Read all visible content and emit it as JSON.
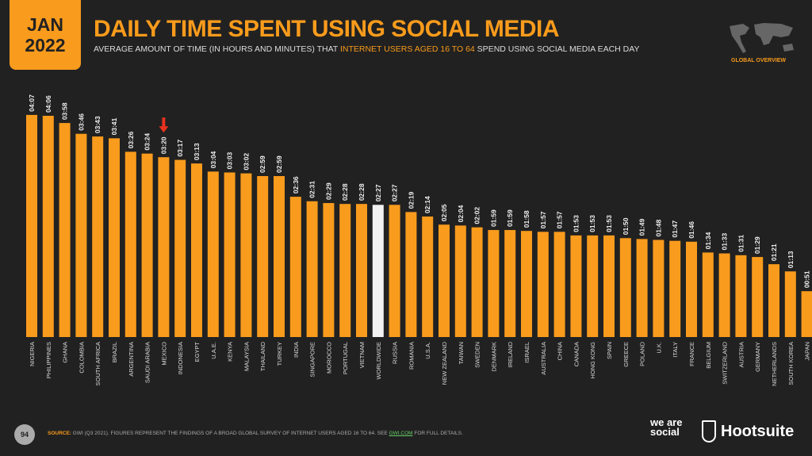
{
  "header": {
    "month": "JAN",
    "year": "2022",
    "title": "DAILY TIME SPENT USING SOCIAL MEDIA",
    "subtitle_pre": "AVERAGE AMOUNT OF TIME (IN HOURS AND MINUTES) THAT ",
    "subtitle_highlight": "INTERNET USERS AGED 16 TO 64",
    "subtitle_post": " SPEND USING SOCIAL MEDIA EACH DAY",
    "badge": "GLOBAL OVERVIEW"
  },
  "footer": {
    "page": "94",
    "source_label": "SOURCE:",
    "source_text": "GWI (Q3 2021). FIGURES REPRESENT THE FINDINGS OF A BROAD GLOBAL SURVEY OF INTERNET USERS AGED 16 TO 64. SEE ",
    "source_link": "GWI.COM",
    "source_tail": " FOR FULL DETAILS.",
    "logo1": "we are social",
    "logo2": "Hootsuite"
  },
  "colors": {
    "bar": "#f99b1c",
    "highlight_bar": "#f2f2f2",
    "background": "#212121",
    "arrow": "#e8321e"
  },
  "chart_data": {
    "type": "bar",
    "title": "DAILY TIME SPENT USING SOCIAL MEDIA",
    "categories": [
      "NIGERIA",
      "PHILIPPINES",
      "GHANA",
      "COLOMBIA",
      "SOUTH AFRICA",
      "BRAZIL",
      "ARGENTINA",
      "SAUDI ARABIA",
      "MEXICO",
      "INDONESIA",
      "EGYPT",
      "U.A.E.",
      "KENYA",
      "MALAYSIA",
      "THAILAND",
      "TURKEY",
      "INDIA",
      "SINGAPORE",
      "MOROCCO",
      "PORTUGAL",
      "VIETNAM",
      "WORLDWIDE",
      "RUSSIA",
      "ROMANIA",
      "U.S.A.",
      "NEW ZEALAND",
      "TAIWAN",
      "SWEDEN",
      "DENMARK",
      "IRELAND",
      "ISRAEL",
      "AUSTRALIA",
      "CHINA",
      "CANADA",
      "HONG KONG",
      "SPAIN",
      "GREECE",
      "POLAND",
      "U.K.",
      "ITALY",
      "FRANCE",
      "BELGIUM",
      "SWITZERLAND",
      "AUSTRIA",
      "GERMANY",
      "NETHERLANDS",
      "SOUTH KOREA",
      "JAPAN"
    ],
    "labels": [
      "04:07",
      "04:06",
      "03:58",
      "03:46",
      "03:43",
      "03:41",
      "03:26",
      "03:24",
      "03:20",
      "03:17",
      "03:13",
      "03:04",
      "03:03",
      "03:02",
      "02:59",
      "02:59",
      "02:36",
      "02:31",
      "02:29",
      "02:28",
      "02:28",
      "02:27",
      "02:27",
      "02:19",
      "02:14",
      "02:05",
      "02:04",
      "02:02",
      "01:59",
      "01:59",
      "01:58",
      "01:57",
      "01:57",
      "01:53",
      "01:53",
      "01:53",
      "01:50",
      "01:49",
      "01:48",
      "01:47",
      "01:46",
      "01:34",
      "01:33",
      "01:31",
      "01:29",
      "01:21",
      "01:13",
      "00:51"
    ],
    "highlighted_category": "WORLDWIDE",
    "arrow_category": "MEXICO",
    "grid": false
  }
}
